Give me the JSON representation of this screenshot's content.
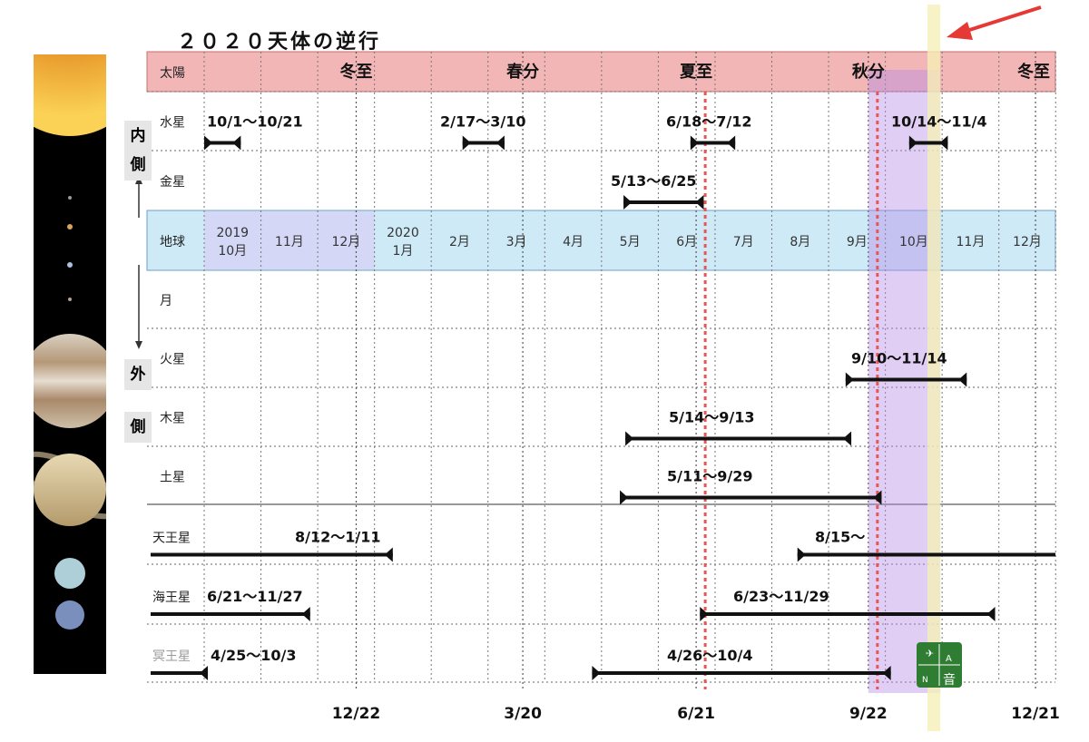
{
  "title": "２０２０天体の逆行",
  "side_labels": {
    "inner": [
      "内",
      "側"
    ],
    "outer": [
      "外",
      "側"
    ]
  },
  "season_labels": [
    "冬至",
    "春分",
    "夏至",
    "秋分",
    "冬至"
  ],
  "bottom_dates": [
    "12/22",
    "3/20",
    "6/21",
    "9/22",
    "12/21"
  ],
  "months": [
    {
      "l1": "2019",
      "l2": "10月"
    },
    {
      "l1": "11月",
      "l2": ""
    },
    {
      "l1": "12月",
      "l2": ""
    },
    {
      "l1": "2020",
      "l2": "1月"
    },
    {
      "l1": "2月",
      "l2": ""
    },
    {
      "l1": "3月",
      "l2": ""
    },
    {
      "l1": "4月",
      "l2": ""
    },
    {
      "l1": "5月",
      "l2": ""
    },
    {
      "l1": "6月",
      "l2": ""
    },
    {
      "l1": "7月",
      "l2": ""
    },
    {
      "l1": "8月",
      "l2": ""
    },
    {
      "l1": "9月",
      "l2": ""
    },
    {
      "l1": "10月",
      "l2": ""
    },
    {
      "l1": "11月",
      "l2": ""
    },
    {
      "l1": "12月",
      "l2": ""
    }
  ],
  "logo_text": [
    "A",
    "N",
    "音"
  ],
  "chart_data": {
    "type": "timeline",
    "x_range": [
      "2019-10-01",
      "2020-12-31"
    ],
    "solstice_equinox_lines": [
      "2019-12-22",
      "2020-03-20",
      "2020-06-21",
      "2020-09-22",
      "2020-12-21"
    ],
    "highlights": [
      {
        "kind": "dotted-red-line",
        "date": "2020-06-21"
      },
      {
        "kind": "dotted-red-line",
        "date": "2020-09-22"
      },
      {
        "kind": "purple-band",
        "from": "2020-09-22",
        "to": "2020-10-31"
      },
      {
        "kind": "yellow-band",
        "from": "2020-10-24",
        "to": "2020-10-31"
      }
    ],
    "rows": [
      {
        "name": "太陽",
        "style": "sun",
        "bars": []
      },
      {
        "name": "水星",
        "style": "normal",
        "bars": [
          {
            "from": "2019-10-01",
            "to": "2019-10-21",
            "label": "10/1〜10/21"
          },
          {
            "from": "2020-02-17",
            "to": "2020-03-10",
            "label": "2/17〜3/10"
          },
          {
            "from": "2020-06-18",
            "to": "2020-07-12",
            "label": "6/18〜7/12"
          },
          {
            "from": "2020-10-14",
            "to": "2020-11-04",
            "label": "10/14〜11/4"
          }
        ]
      },
      {
        "name": "金星",
        "style": "normal",
        "bars": [
          {
            "from": "2020-05-13",
            "to": "2020-06-25",
            "label": "5/13〜6/25"
          }
        ]
      },
      {
        "name": "地球",
        "style": "earth",
        "bars": []
      },
      {
        "name": "月",
        "style": "normal",
        "bars": []
      },
      {
        "name": "火星",
        "style": "normal",
        "bars": [
          {
            "from": "2020-09-10",
            "to": "2020-11-14",
            "label": "9/10〜11/14"
          }
        ]
      },
      {
        "name": "木星",
        "style": "normal",
        "bars": [
          {
            "from": "2020-05-14",
            "to": "2020-09-13",
            "label": "5/14〜9/13"
          }
        ]
      },
      {
        "name": "土星",
        "style": "normal",
        "bars": [
          {
            "from": "2020-05-11",
            "to": "2020-09-29",
            "label": "5/11〜9/29"
          }
        ]
      },
      {
        "name": "天王星",
        "style": "normal",
        "bars": [
          {
            "from": "2019-08-12",
            "to": "2020-01-11",
            "label": "8/12〜1/11"
          },
          {
            "from": "2020-08-15",
            "to": "2021-01-14",
            "label": "8/15〜"
          }
        ]
      },
      {
        "name": "海王星",
        "style": "normal",
        "bars": [
          {
            "from": "2019-06-21",
            "to": "2019-11-27",
            "label": "6/21〜11/27"
          },
          {
            "from": "2020-06-23",
            "to": "2020-11-29",
            "label": "6/23〜11/29"
          }
        ]
      },
      {
        "name": "冥王星",
        "style": "gray",
        "bars": [
          {
            "from": "2019-04-25",
            "to": "2019-10-03",
            "label": "4/25〜10/3"
          },
          {
            "from": "2020-04-26",
            "to": "2020-10-04",
            "label": "4/26〜10/4"
          }
        ]
      }
    ]
  }
}
